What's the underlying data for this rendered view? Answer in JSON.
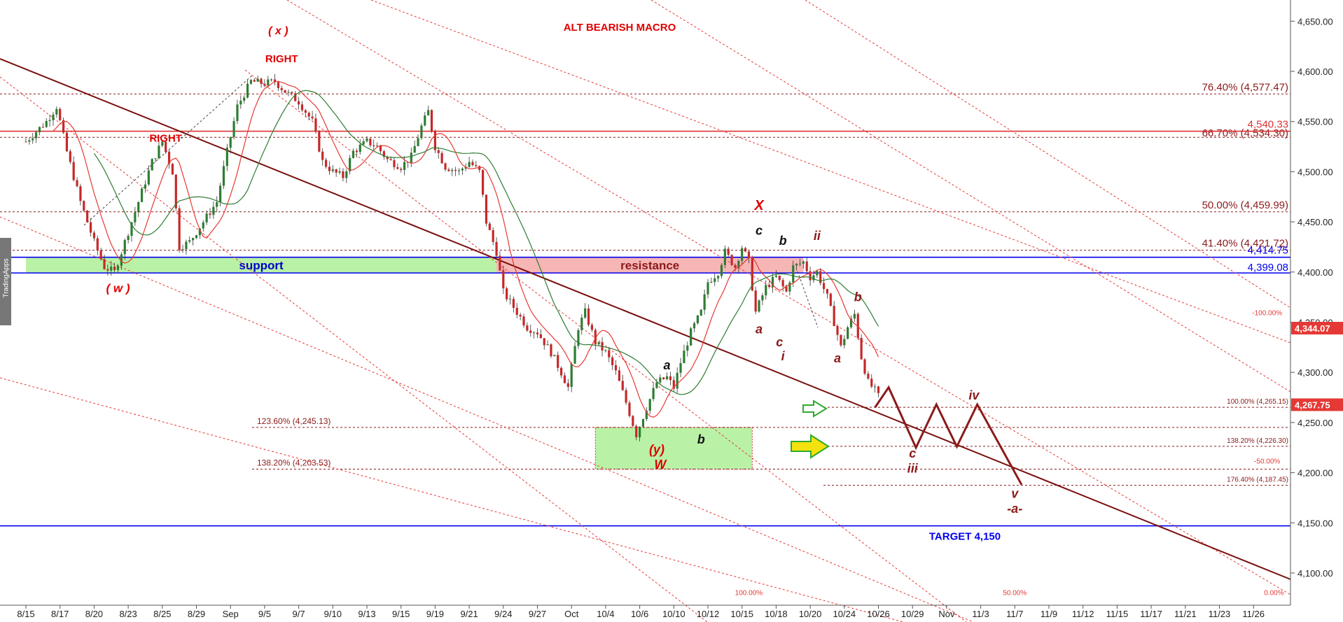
{
  "watermark": "TradingApps",
  "chart_data": {
    "type": "candlestick",
    "title": "ALT BEARISH MACRO",
    "ylim": [
      4065,
      4680
    ],
    "y_ticks": [
      4100,
      4150,
      4200,
      4250,
      4300,
      4350,
      4400,
      4450,
      4500,
      4550,
      4600,
      4650
    ],
    "y_tick_labels": [
      "4,100.00",
      "4,150.00",
      "4,200.00",
      "4,250.00",
      "4,300.00",
      "4,350.00",
      "4,400.00",
      "4,450.00",
      "4,500.00",
      "4,550.00",
      "4,600.00",
      "4,650.00"
    ],
    "x_tick_labels": [
      "8/15",
      "8/17",
      "8/20",
      "8/23",
      "8/25",
      "8/29",
      "Sep",
      "9/5",
      "9/7",
      "9/10",
      "9/13",
      "9/15",
      "9/19",
      "9/21",
      "9/24",
      "9/27",
      "Oct",
      "10/4",
      "10/6",
      "10/10",
      "10/12",
      "10/15",
      "10/18",
      "10/20",
      "10/24",
      "10/26",
      "10/29",
      "Nov",
      "11/3",
      "11/7",
      "11/9",
      "11/12",
      "11/15",
      "11/17",
      "11/21",
      "11/23",
      "11/26"
    ],
    "x_range": [
      0,
      37
    ],
    "price_path": [
      [
        0,
        4530
      ],
      [
        0.6,
        4550
      ],
      [
        0.9,
        4565
      ],
      [
        1.2,
        4520
      ],
      [
        1.6,
        4470
      ],
      [
        2.0,
        4430
      ],
      [
        2.3,
        4405
      ],
      [
        2.6,
        4400
      ],
      [
        3.0,
        4440
      ],
      [
        3.4,
        4480
      ],
      [
        3.7,
        4510
      ],
      [
        4.0,
        4530
      ],
      [
        4.3,
        4500
      ],
      [
        4.5,
        4425
      ],
      [
        4.8,
        4430
      ],
      [
        5.2,
        4450
      ],
      [
        5.6,
        4470
      ],
      [
        5.9,
        4520
      ],
      [
        6.2,
        4565
      ],
      [
        6.6,
        4590
      ],
      [
        7.0,
        4588
      ],
      [
        7.3,
        4590
      ],
      [
        7.6,
        4580
      ],
      [
        8.0,
        4570
      ],
      [
        8.4,
        4550
      ],
      [
        8.7,
        4510
      ],
      [
        9.0,
        4500
      ],
      [
        9.3,
        4495
      ],
      [
        9.6,
        4520
      ],
      [
        10.0,
        4530
      ],
      [
        10.3,
        4525
      ],
      [
        10.6,
        4512
      ],
      [
        11.0,
        4505
      ],
      [
        11.3,
        4515
      ],
      [
        11.6,
        4545
      ],
      [
        11.8,
        4560
      ],
      [
        12.0,
        4525
      ],
      [
        12.3,
        4505
      ],
      [
        12.7,
        4500
      ],
      [
        13.0,
        4510
      ],
      [
        13.3,
        4500
      ],
      [
        13.5,
        4450
      ],
      [
        13.8,
        4420
      ],
      [
        14.0,
        4380
      ],
      [
        14.4,
        4360
      ],
      [
        14.7,
        4345
      ],
      [
        15.0,
        4340
      ],
      [
        15.4,
        4320
      ],
      [
        15.7,
        4300
      ],
      [
        15.9,
        4285
      ],
      [
        16.2,
        4345
      ],
      [
        16.4,
        4360
      ],
      [
        16.7,
        4330
      ],
      [
        17.0,
        4320
      ],
      [
        17.3,
        4300
      ],
      [
        17.6,
        4270
      ],
      [
        17.9,
        4238
      ],
      [
        18.2,
        4265
      ],
      [
        18.5,
        4290
      ],
      [
        18.8,
        4295
      ],
      [
        19.0,
        4285
      ],
      [
        19.2,
        4310
      ],
      [
        19.5,
        4340
      ],
      [
        19.8,
        4360
      ],
      [
        20.0,
        4390
      ],
      [
        20.3,
        4400
      ],
      [
        20.5,
        4420
      ],
      [
        20.8,
        4405
      ],
      [
        21.0,
        4425
      ],
      [
        21.2,
        4410
      ],
      [
        21.4,
        4360
      ],
      [
        21.7,
        4385
      ],
      [
        22.0,
        4395
      ],
      [
        22.3,
        4380
      ],
      [
        22.5,
        4405
      ],
      [
        22.8,
        4410
      ],
      [
        23.0,
        4395
      ],
      [
        23.2,
        4400
      ],
      [
        23.5,
        4375
      ],
      [
        23.7,
        4350
      ],
      [
        23.9,
        4325
      ],
      [
        24.1,
        4345
      ],
      [
        24.3,
        4358
      ],
      [
        24.5,
        4315
      ],
      [
        24.7,
        4290
      ],
      [
        24.9,
        4282
      ],
      [
        25.1,
        4270
      ]
    ],
    "series": [],
    "horizontal_levels": [
      {
        "label": "76.40% (4,577.47)",
        "value": 4577.47
      },
      {
        "label": "66.70% (4,534.30)",
        "value": 4534.3
      },
      {
        "label": "4,540.33",
        "value": 4540.33
      },
      {
        "label": "50.00% (4,459.99)",
        "value": 4459.99
      },
      {
        "label": "41.40% (4,421.72)",
        "value": 4421.72
      },
      {
        "label": "4,414.75",
        "value": 4414.75
      },
      {
        "label": "4,399.08",
        "value": 4399.08
      },
      {
        "label": "100.00% (4,265.15)",
        "value": 4265.15
      },
      {
        "label": "123.60% (4,245.13)",
        "value": 4245.13
      },
      {
        "label": "138.20% (4,226.30)",
        "value": 4226.3
      },
      {
        "label": "138.20% (4,203.53)",
        "value": 4203.53
      },
      {
        "label": "176.40% (4,187.45)",
        "value": 4187.45
      },
      {
        "label": "TARGET 4,150",
        "value": 4147
      }
    ],
    "price_badges": [
      {
        "label": "4,344.07",
        "value": 4344.07
      },
      {
        "label": "4,267.75",
        "value": 4267.75
      }
    ],
    "zones": [
      {
        "label": "support",
        "from_x": 0,
        "to_x": 13.8,
        "low": 4399.08,
        "high": 4414.75
      },
      {
        "label": "resistance",
        "from_x": 13.8,
        "to_x": 22.8,
        "low": 4399.08,
        "high": 4414.75
      },
      {
        "label": "",
        "from_x": 16.7,
        "to_x": 21.3,
        "low": 4203.53,
        "high": 4245.13
      }
    ],
    "projection_path": [
      [
        24.9,
        4265
      ],
      [
        25.3,
        4285
      ],
      [
        26.1,
        4225
      ],
      [
        26.7,
        4268
      ],
      [
        27.3,
        4226
      ],
      [
        27.9,
        4268
      ],
      [
        29.2,
        4188
      ]
    ],
    "wave_labels": [
      {
        "text": "( x )",
        "x": 7.4,
        "y": 4637
      },
      {
        "text": "RIGHT",
        "x": 7.5,
        "y": 4609
      },
      {
        "text": "RIGHT",
        "x": 4.1,
        "y": 4530
      },
      {
        "text": "( w )",
        "x": 2.7,
        "y": 4380
      },
      {
        "text": "X",
        "x": 21.5,
        "y": 4462
      },
      {
        "text": "c",
        "x": 21.5,
        "y": 4437
      },
      {
        "text": "b",
        "x": 22.2,
        "y": 4427
      },
      {
        "text": "ii",
        "x": 23.2,
        "y": 4432
      },
      {
        "text": "b",
        "x": 24.4,
        "y": 4371
      },
      {
        "text": "a",
        "x": 21.5,
        "y": 4339
      },
      {
        "text": "c",
        "x": 22.1,
        "y": 4326
      },
      {
        "text": "i",
        "x": 22.2,
        "y": 4312
      },
      {
        "text": "a",
        "x": 23.8,
        "y": 4310
      },
      {
        "text": "a",
        "x": 18.8,
        "y": 4303
      },
      {
        "text": "(y)",
        "x": 18.5,
        "y": 4219
      },
      {
        "text": "W",
        "x": 18.6,
        "y": 4204
      },
      {
        "text": "b",
        "x": 19.8,
        "y": 4229
      },
      {
        "text": "iv",
        "x": 27.8,
        "y": 4273
      },
      {
        "text": "c",
        "x": 26.0,
        "y": 4215
      },
      {
        "text": "iii",
        "x": 26.0,
        "y": 4200
      },
      {
        "text": "v",
        "x": 29.0,
        "y": 4175
      },
      {
        "text": "-a-",
        "x": 29.0,
        "y": 4160
      }
    ],
    "channel_labels": [
      {
        "text": "-100.00%",
        "x": 36.4,
        "y": 4357
      },
      {
        "text": "-50.00%",
        "x": 36.4,
        "y": 4209
      },
      {
        "text": "100.00%",
        "x": 21.2,
        "y": 4078
      },
      {
        "text": "50.00%",
        "x": 29.0,
        "y": 4078
      },
      {
        "text": "0.00%",
        "x": 36.6,
        "y": 4078
      }
    ]
  }
}
